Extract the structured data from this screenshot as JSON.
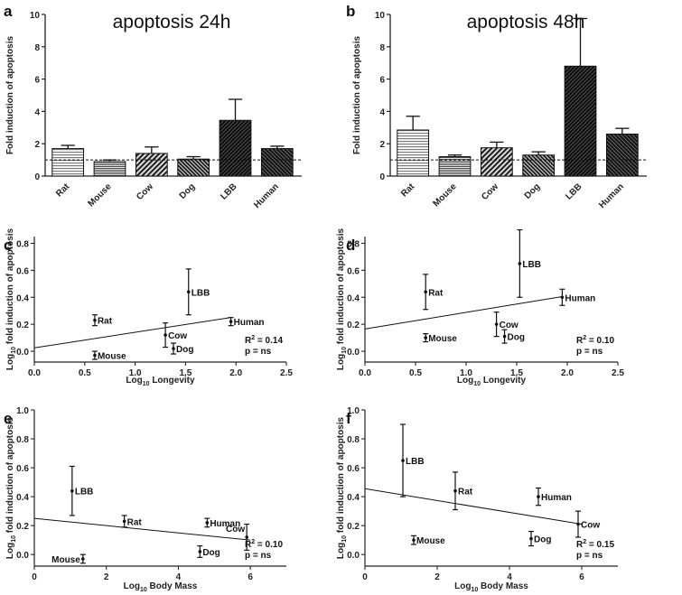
{
  "chart_data": [
    {
      "panel": "a",
      "type": "bar",
      "title": "apoptosis 24h",
      "ylabel": "Fold induction of apoptosis",
      "xlabel": "",
      "ylim": [
        0,
        10
      ],
      "yticks": [
        0,
        2,
        4,
        6,
        8,
        10
      ],
      "categories": [
        "Rat",
        "Mouse",
        "Cow",
        "Dog",
        "LBB",
        "Human"
      ],
      "values": [
        1.7,
        0.9,
        1.4,
        1.05,
        3.45,
        1.7
      ],
      "errors": [
        0.2,
        0.1,
        0.4,
        0.15,
        1.3,
        0.15
      ],
      "baseline": 1.0,
      "bar_colors": [
        "#b9b9b9",
        "#6d6d6d",
        "#555555",
        "#444444",
        "#1a1a1a",
        "#2b2b2b"
      ]
    },
    {
      "panel": "b",
      "type": "bar",
      "title": "apoptosis 48h",
      "ylabel": "Fold induction of apoptosis",
      "xlabel": "",
      "ylim": [
        0,
        10
      ],
      "yticks": [
        0,
        2,
        4,
        6,
        8,
        10
      ],
      "categories": [
        "Rat",
        "Mouse",
        "Cow",
        "Dog",
        "LBB",
        "Human"
      ],
      "values": [
        2.85,
        1.2,
        1.75,
        1.3,
        6.8,
        2.6
      ],
      "errors": [
        0.85,
        0.1,
        0.35,
        0.2,
        2.95,
        0.35
      ],
      "baseline": 1.0,
      "bar_colors": [
        "#9a9a9a",
        "#6d6d6d",
        "#555555",
        "#444444",
        "#1a1a1a",
        "#2b2b2b"
      ]
    },
    {
      "panel": "c",
      "type": "scatter",
      "title": "",
      "xlabel_main": "Log",
      "xlabel_sub": "10",
      "xlabel_rest": " Longevity",
      "ylabel_main": "Log",
      "ylabel_sub": "10",
      "ylabel_rest": " fold induction of apoptosis",
      "xlim": [
        0,
        2.5
      ],
      "ylim": [
        -0.08,
        0.85
      ],
      "xticks": [
        "0.0",
        "0.5",
        "1.0",
        "1.5",
        "2.0",
        "2.5"
      ],
      "xtick_values": [
        0,
        0.5,
        1.0,
        1.5,
        2.0,
        2.5
      ],
      "yticks": [
        "0.0",
        "0.2",
        "0.4",
        "0.6",
        "0.8"
      ],
      "ytick_values": [
        0,
        0.2,
        0.4,
        0.6,
        0.8
      ],
      "points": [
        {
          "label": "Rat",
          "x": 0.6,
          "y": 0.23,
          "err": 0.04,
          "label_side": "right"
        },
        {
          "label": "Mouse",
          "x": 0.6,
          "y": -0.03,
          "err": 0.03,
          "label_side": "right"
        },
        {
          "label": "LBB",
          "x": 1.53,
          "y": 0.44,
          "err": 0.17,
          "label_side": "right"
        },
        {
          "label": "Cow",
          "x": 1.3,
          "y": 0.12,
          "err": 0.09,
          "label_side": "right"
        },
        {
          "label": "Dog",
          "x": 1.38,
          "y": 0.02,
          "err": 0.04,
          "label_side": "right"
        },
        {
          "label": "Human",
          "x": 1.95,
          "y": 0.22,
          "err": 0.03,
          "label_side": "right"
        }
      ],
      "fit_line": {
        "x": [
          0,
          1.95
        ],
        "y": [
          0.025,
          0.25
        ]
      },
      "r2_text": "R2 = 0.14",
      "p_text": "p = ns"
    },
    {
      "panel": "d",
      "type": "scatter",
      "title": "",
      "xlabel_main": "Log",
      "xlabel_sub": "10",
      "xlabel_rest": " Longevity",
      "ylabel_main": "Log",
      "ylabel_sub": "10",
      "ylabel_rest": " fold induction of apoptosis",
      "xlim": [
        0,
        2.5
      ],
      "ylim": [
        -0.08,
        0.85
      ],
      "xticks": [
        "0.0",
        "0.5",
        "1.0",
        "1.5",
        "2.0",
        "2.5"
      ],
      "xtick_values": [
        0,
        0.5,
        1.0,
        1.5,
        2.0,
        2.5
      ],
      "yticks": [
        "0.0",
        "0.2",
        "0.4",
        "0.6",
        "0.8"
      ],
      "ytick_values": [
        0,
        0.2,
        0.4,
        0.6,
        0.8
      ],
      "points": [
        {
          "label": "Rat",
          "x": 0.6,
          "y": 0.44,
          "err": 0.13,
          "label_side": "right"
        },
        {
          "label": "Mouse",
          "x": 0.6,
          "y": 0.1,
          "err": 0.03,
          "label_side": "right"
        },
        {
          "label": "LBB",
          "x": 1.53,
          "y": 0.65,
          "err": 0.25,
          "label_side": "right"
        },
        {
          "label": "Cow",
          "x": 1.3,
          "y": 0.2,
          "err": 0.09,
          "label_side": "right"
        },
        {
          "label": "Dog",
          "x": 1.38,
          "y": 0.11,
          "err": 0.05,
          "label_side": "right"
        },
        {
          "label": "Human",
          "x": 1.95,
          "y": 0.4,
          "err": 0.06,
          "label_side": "right"
        }
      ],
      "fit_line": {
        "x": [
          0,
          1.95
        ],
        "y": [
          0.165,
          0.405
        ]
      },
      "r2_text": "R2 = 0.10",
      "p_text": "p = ns"
    },
    {
      "panel": "e",
      "type": "scatter",
      "title": "",
      "xlabel_main": "Log",
      "xlabel_sub": "10",
      "xlabel_rest": " Body Mass",
      "ylabel_main": "Log",
      "ylabel_sub": "10",
      "ylabel_rest": " fold induction of apoptosis",
      "xlim": [
        0,
        7
      ],
      "ylim": [
        -0.08,
        1.0
      ],
      "xticks": [
        "0",
        "2",
        "4",
        "6"
      ],
      "xtick_values": [
        0,
        2,
        4,
        6
      ],
      "yticks": [
        "0.0",
        "0.2",
        "0.4",
        "0.6",
        "0.8",
        "1.0"
      ],
      "ytick_values": [
        0,
        0.2,
        0.4,
        0.6,
        0.8,
        1.0
      ],
      "points": [
        {
          "label": "LBB",
          "x": 1.05,
          "y": 0.44,
          "err": 0.17,
          "label_side": "right"
        },
        {
          "label": "Rat",
          "x": 2.5,
          "y": 0.23,
          "err": 0.04,
          "label_side": "right"
        },
        {
          "label": "Human",
          "x": 4.8,
          "y": 0.22,
          "err": 0.03,
          "label_side": "right"
        },
        {
          "label": "Mouse",
          "x": 1.35,
          "y": -0.03,
          "err": 0.03,
          "label_side": "left"
        },
        {
          "label": "Dog",
          "x": 4.6,
          "y": 0.02,
          "err": 0.04,
          "label_side": "right"
        },
        {
          "label": "Cow",
          "x": 5.9,
          "y": 0.12,
          "err": 0.09,
          "label_side": "left-up"
        }
      ],
      "fit_line": {
        "x": [
          0,
          6.0
        ],
        "y": [
          0.25,
          0.1
        ]
      },
      "r2_text": "R2 = 0.10",
      "p_text": "p = ns"
    },
    {
      "panel": "f",
      "type": "scatter",
      "title": "",
      "xlabel_main": "Log",
      "xlabel_sub": "10",
      "xlabel_rest": " Body Mass",
      "ylabel_main": "Log",
      "ylabel_sub": "10",
      "ylabel_rest": " fold induction of apoptosis",
      "xlim": [
        0,
        7
      ],
      "ylim": [
        -0.08,
        1.0
      ],
      "xticks": [
        "0",
        "2",
        "4",
        "6"
      ],
      "xtick_values": [
        0,
        2,
        4,
        6
      ],
      "yticks": [
        "0.0",
        "0.2",
        "0.4",
        "0.6",
        "0.8",
        "1.0"
      ],
      "ytick_values": [
        0,
        0.2,
        0.4,
        0.6,
        0.8,
        1.0
      ],
      "points": [
        {
          "label": "LBB",
          "x": 1.05,
          "y": 0.65,
          "err": 0.25,
          "label_side": "right"
        },
        {
          "label": "Rat",
          "x": 2.5,
          "y": 0.44,
          "err": 0.13,
          "label_side": "right"
        },
        {
          "label": "Human",
          "x": 4.8,
          "y": 0.4,
          "err": 0.06,
          "label_side": "right"
        },
        {
          "label": "Mouse",
          "x": 1.35,
          "y": 0.1,
          "err": 0.03,
          "label_side": "right"
        },
        {
          "label": "Dog",
          "x": 4.6,
          "y": 0.11,
          "err": 0.05,
          "label_side": "right"
        },
        {
          "label": "Cow",
          "x": 5.9,
          "y": 0.21,
          "err": 0.09,
          "label_side": "right"
        }
      ],
      "fit_line": {
        "x": [
          0,
          6.0
        ],
        "y": [
          0.455,
          0.21
        ]
      },
      "r2_text": "R2 = 0.15",
      "p_text": "p = ns"
    }
  ]
}
